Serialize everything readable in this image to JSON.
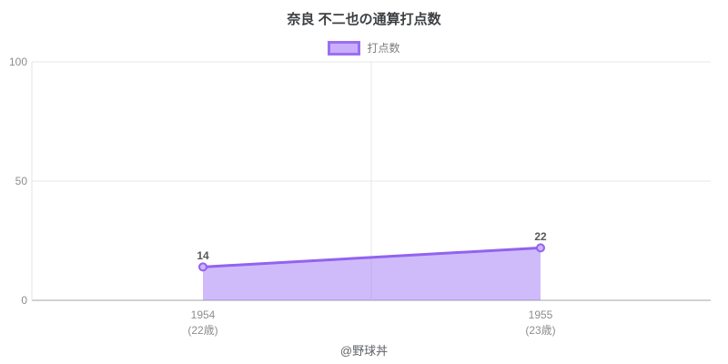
{
  "page": {
    "title": "奈良 不二也の通算打点数",
    "footer": "@野球丼"
  },
  "legend": {
    "label": "打点数"
  },
  "axes": {
    "y_ticks": [
      "100",
      "50",
      "0"
    ],
    "x_ticks": [
      {
        "year": "1954",
        "age": "(22歳)"
      },
      {
        "year": "1955",
        "age": "(23歳)"
      }
    ]
  },
  "chart_data": {
    "type": "area",
    "title": "奈良 不二也の通算打点数",
    "categories": [
      "1954 (22歳)",
      "1955 (23歳)"
    ],
    "series": [
      {
        "name": "打点数",
        "values": [
          14,
          22
        ]
      }
    ],
    "point_labels": [
      "14",
      "22"
    ],
    "xlabel": "",
    "ylabel": "",
    "ylim": [
      0,
      100
    ],
    "yticks": [
      0,
      50,
      100
    ],
    "grid": true,
    "legend_position": "top"
  },
  "colors": {
    "line": "#9263f0",
    "area_fill": "rgba(150,105,243,0.45)",
    "point_fill": "#cdb4fb",
    "point_stroke": "#9263f0",
    "grid": "#e7e7e7",
    "axis_line": "#d2d2d2",
    "y_axis_line": "#e3e3e3"
  }
}
